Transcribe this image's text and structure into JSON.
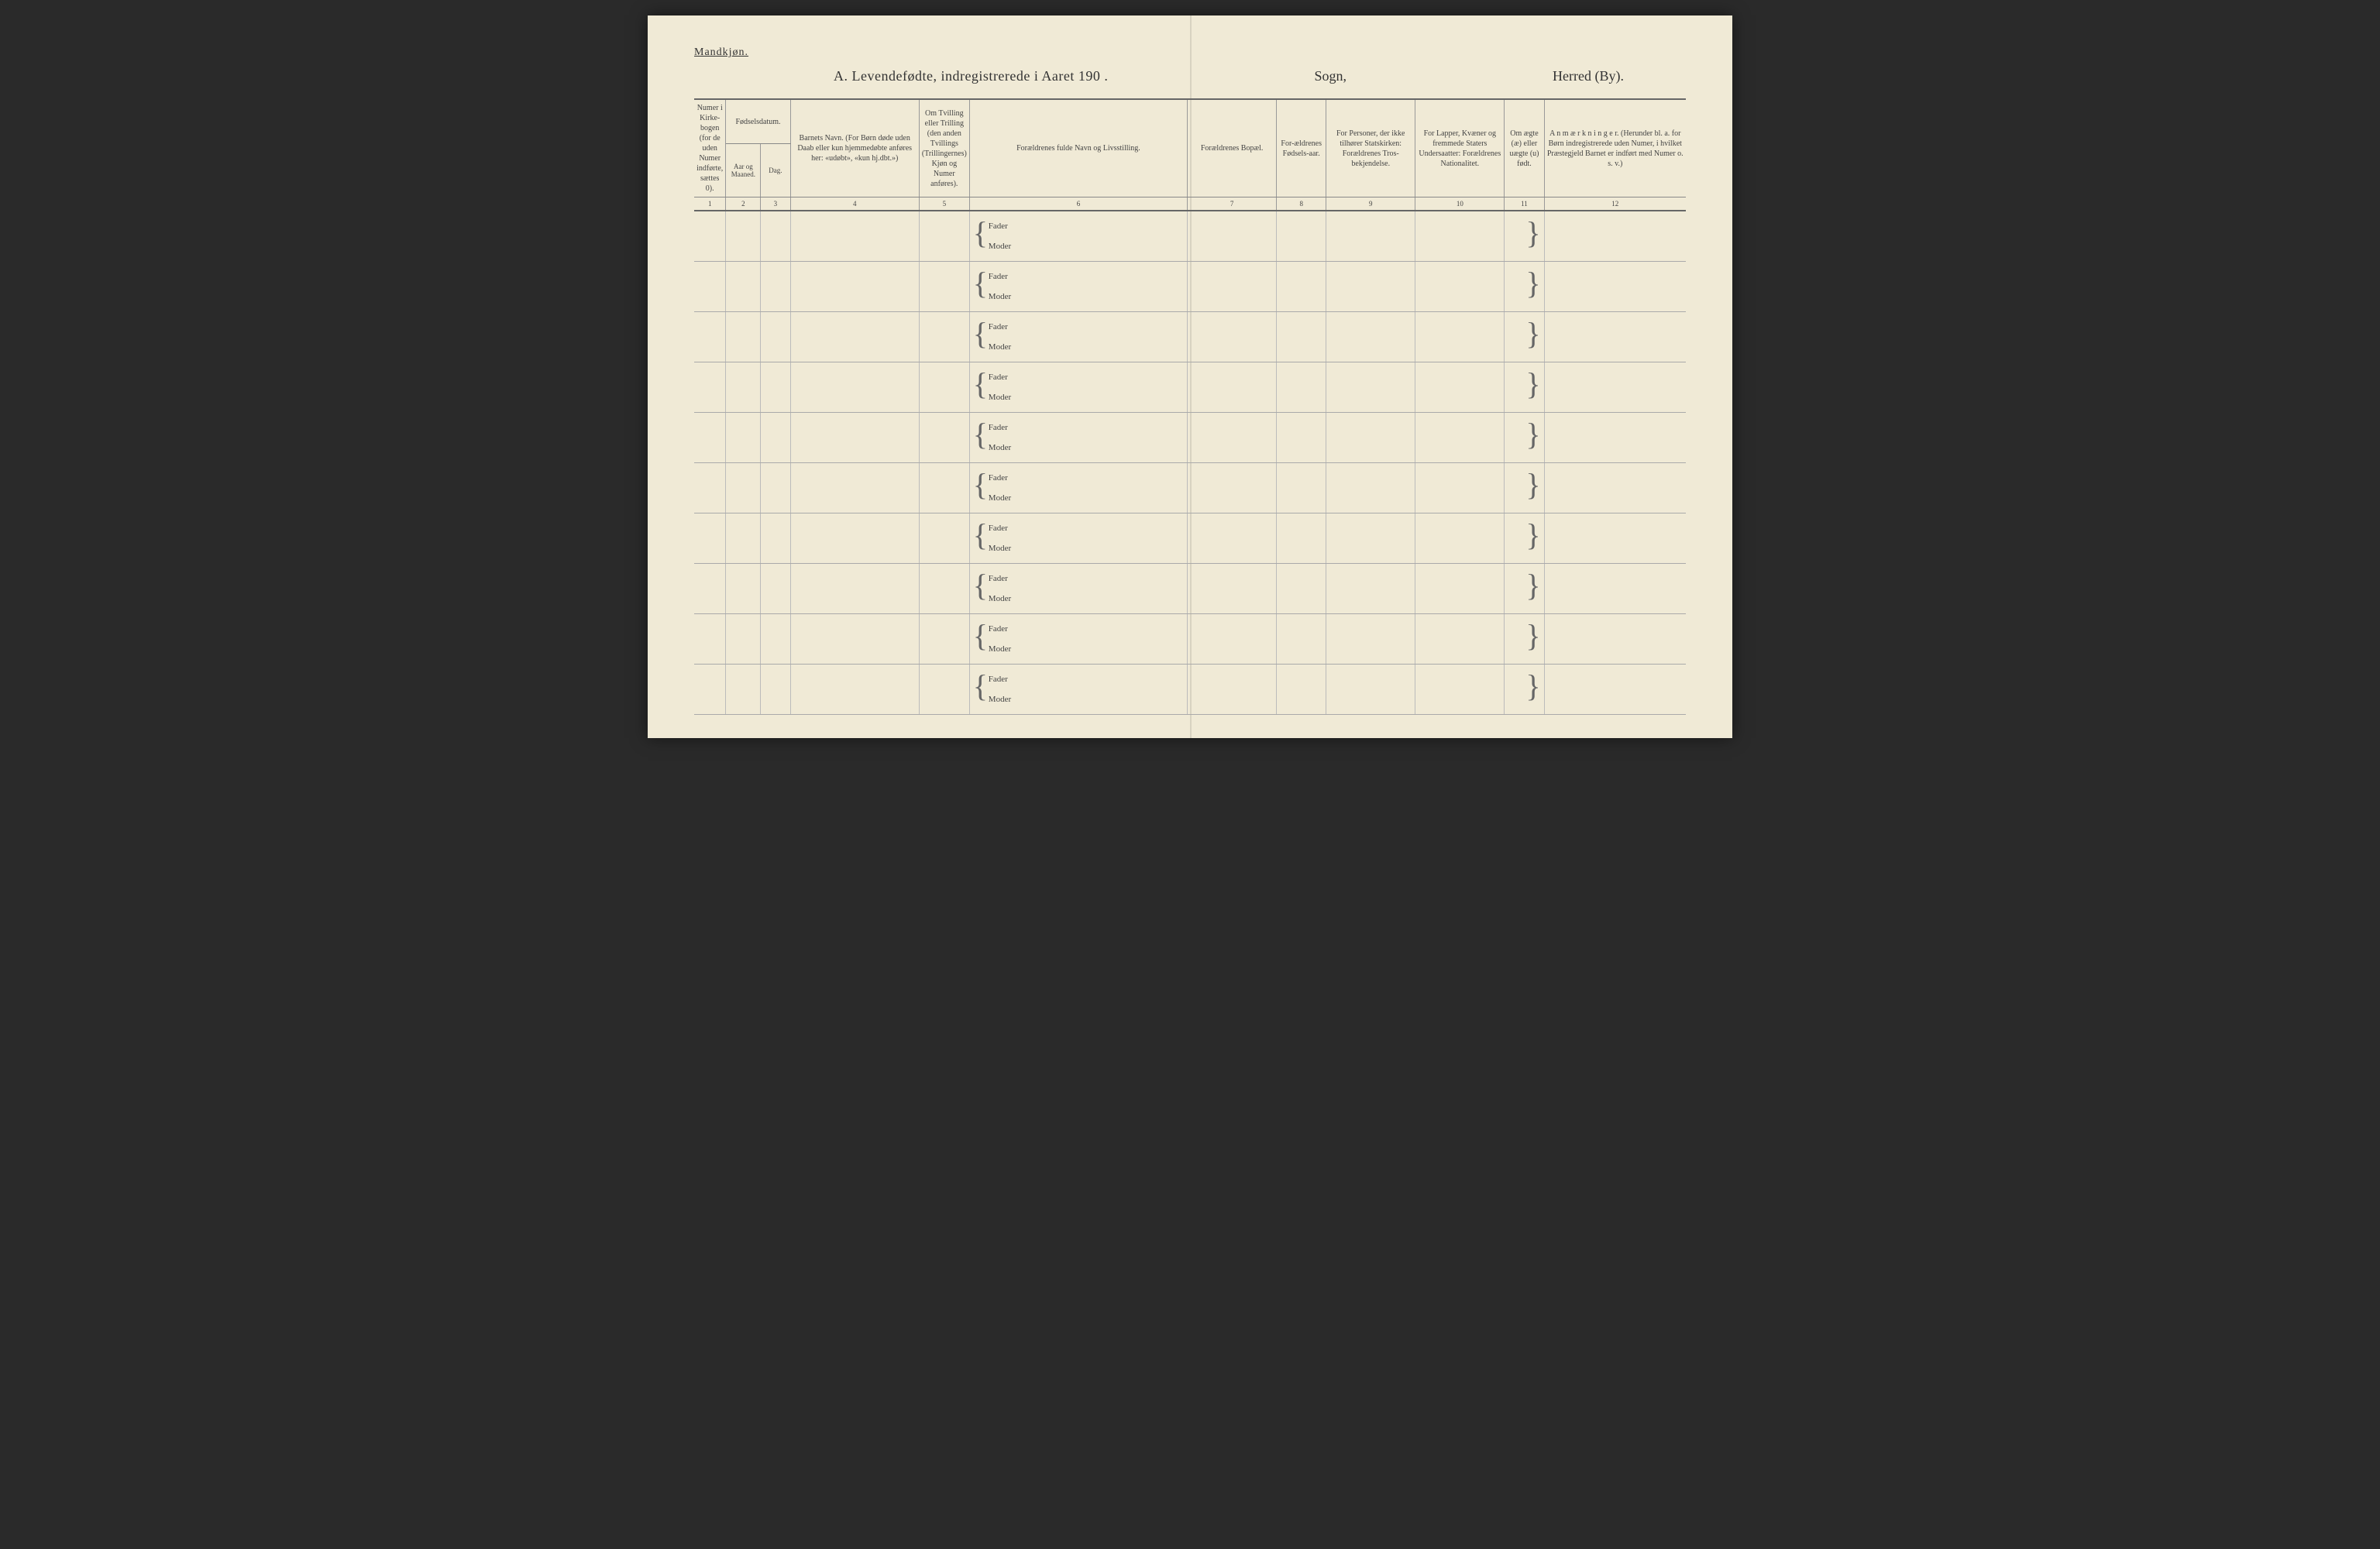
{
  "page": {
    "background_color": "#f0ead6",
    "border_color": "#666666",
    "grid_color": "#aaaaaa",
    "text_color": "#333333"
  },
  "header": {
    "gender_label": "Mandkjøn.",
    "title_main": "A.   Levendefødte, indregistrerede i Aaret 190   .",
    "title_sogn": "Sogn,",
    "title_herred": "Herred (By)."
  },
  "columns": {
    "col1": "Numer i Kirke-bogen (for de uden Numer indførte, sættes 0).",
    "col2_group": "Fødselsdatum.",
    "col2a": "Aar og Maaned.",
    "col2b": "Dag.",
    "col4": "Barnets Navn.\n(For Børn døde uden Daab eller kun hjemmedøbte anføres her: «udøbt», «kun hj.dbt.»)",
    "col5": "Om Tvilling eller Trilling (den anden Tvillings (Trillingernes) Kjøn og Numer anføres).",
    "col6": "Forældrenes fulde Navn og Livsstilling.",
    "col7": "Forældrenes Bopæl.",
    "col8": "For-ældrenes Fødsels-aar.",
    "col9": "For Personer, der ikke tilhører Statskirken: Forældrenes Tros-bekjendelse.",
    "col10": "For Lapper, Kvæner og fremmede Staters Undersaatter: Forældrenes Nationalitet.",
    "col11": "Om ægte (æ) eller uægte (u) født.",
    "col12": "A n m æ r k n i n g e r.\n(Herunder bl. a. for Børn indregistrerede uden Numer, i hvilket Præstegjeld Barnet er indført med Numer o. s. v.)"
  },
  "colnums": {
    "n1": "1",
    "n2": "2",
    "n3": "3",
    "n4": "4",
    "n5": "5",
    "n6": "6",
    "n7": "7",
    "n8": "8",
    "n9": "9",
    "n10": "10",
    "n11": "11",
    "n12": "12"
  },
  "row_labels": {
    "fader": "Fader",
    "moder": "Moder"
  },
  "row_count": 10
}
